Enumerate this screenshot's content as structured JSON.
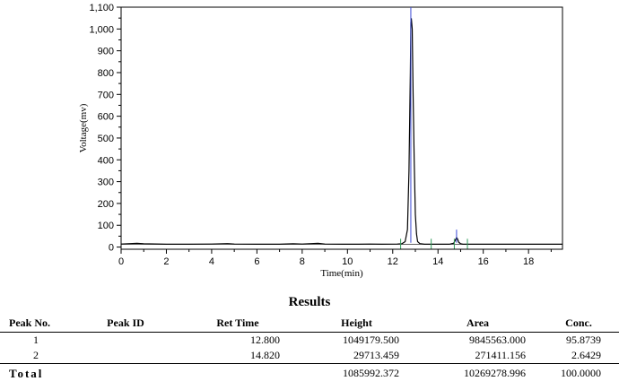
{
  "chart_data": {
    "type": "line",
    "xlabel": "Time(min)",
    "ylabel": "Voltage(mv)",
    "xlim": [
      0,
      19.5
    ],
    "ylim": [
      -10,
      1100
    ],
    "xticks": [
      0,
      2,
      4,
      6,
      8,
      10,
      12,
      14,
      16,
      18
    ],
    "yticks": [
      0,
      100,
      200,
      300,
      400,
      500,
      600,
      700,
      800,
      900,
      1000,
      1100
    ],
    "ytick_labels": [
      "0",
      "100",
      "200",
      "300",
      "400",
      "500",
      "600",
      "700",
      "800",
      "900",
      "1,000",
      "1,100"
    ],
    "grid": false,
    "series": [
      {
        "x": [
          0,
          0.3,
          0.7,
          1.0,
          2.0,
          3.0,
          4.0,
          4.7,
          5.0,
          6.0,
          7.0,
          7.6,
          8.0,
          8.7,
          9.0,
          9.8,
          10.5,
          11.0,
          11.5,
          12.2,
          12.4,
          12.55,
          12.65,
          12.72,
          12.78,
          12.8,
          12.82,
          12.86,
          12.9,
          12.95,
          13.0,
          13.05,
          13.1,
          13.2,
          13.4,
          13.7,
          14.0,
          14.5,
          14.7,
          14.78,
          14.82,
          14.86,
          14.92,
          15.0,
          15.1,
          15.3,
          16.0,
          17.0,
          18.0,
          19.0,
          19.5
        ],
        "y": [
          14,
          15,
          17,
          15,
          13,
          13,
          14,
          16,
          14,
          13,
          13,
          15,
          14,
          17,
          14,
          13,
          13,
          14,
          13,
          14,
          15,
          25,
          80,
          350,
          800,
          1030,
          1049,
          1000,
          700,
          400,
          150,
          60,
          25,
          16,
          13,
          13,
          13,
          13,
          18,
          35,
          44,
          38,
          22,
          15,
          13,
          13,
          13,
          13,
          13,
          13,
          13
        ],
        "color": "#000000"
      }
    ],
    "peak_marks": [
      {
        "x": 12.8,
        "y": 1100
      },
      {
        "x": 14.82,
        "y": 80
      }
    ],
    "boundary_marks": [
      12.35,
      13.7,
      14.72,
      15.3
    ]
  },
  "results": {
    "title": "Results",
    "headers": [
      "Peak No.",
      "Peak ID",
      "Ret Time",
      "Height",
      "Area",
      "Conc."
    ],
    "rows": [
      {
        "peak": "1",
        "id": "",
        "ret": "12.800",
        "height": "1049179.500",
        "area": "9845563.000",
        "conc": "95.8739"
      },
      {
        "peak": "2",
        "id": "",
        "ret": "14.820",
        "height": "29713.459",
        "area": "271411.156",
        "conc": "2.6429"
      }
    ],
    "total": {
      "label": "Total",
      "height": "1085992.372",
      "area": "10269278.996",
      "conc": "100.0000"
    }
  }
}
